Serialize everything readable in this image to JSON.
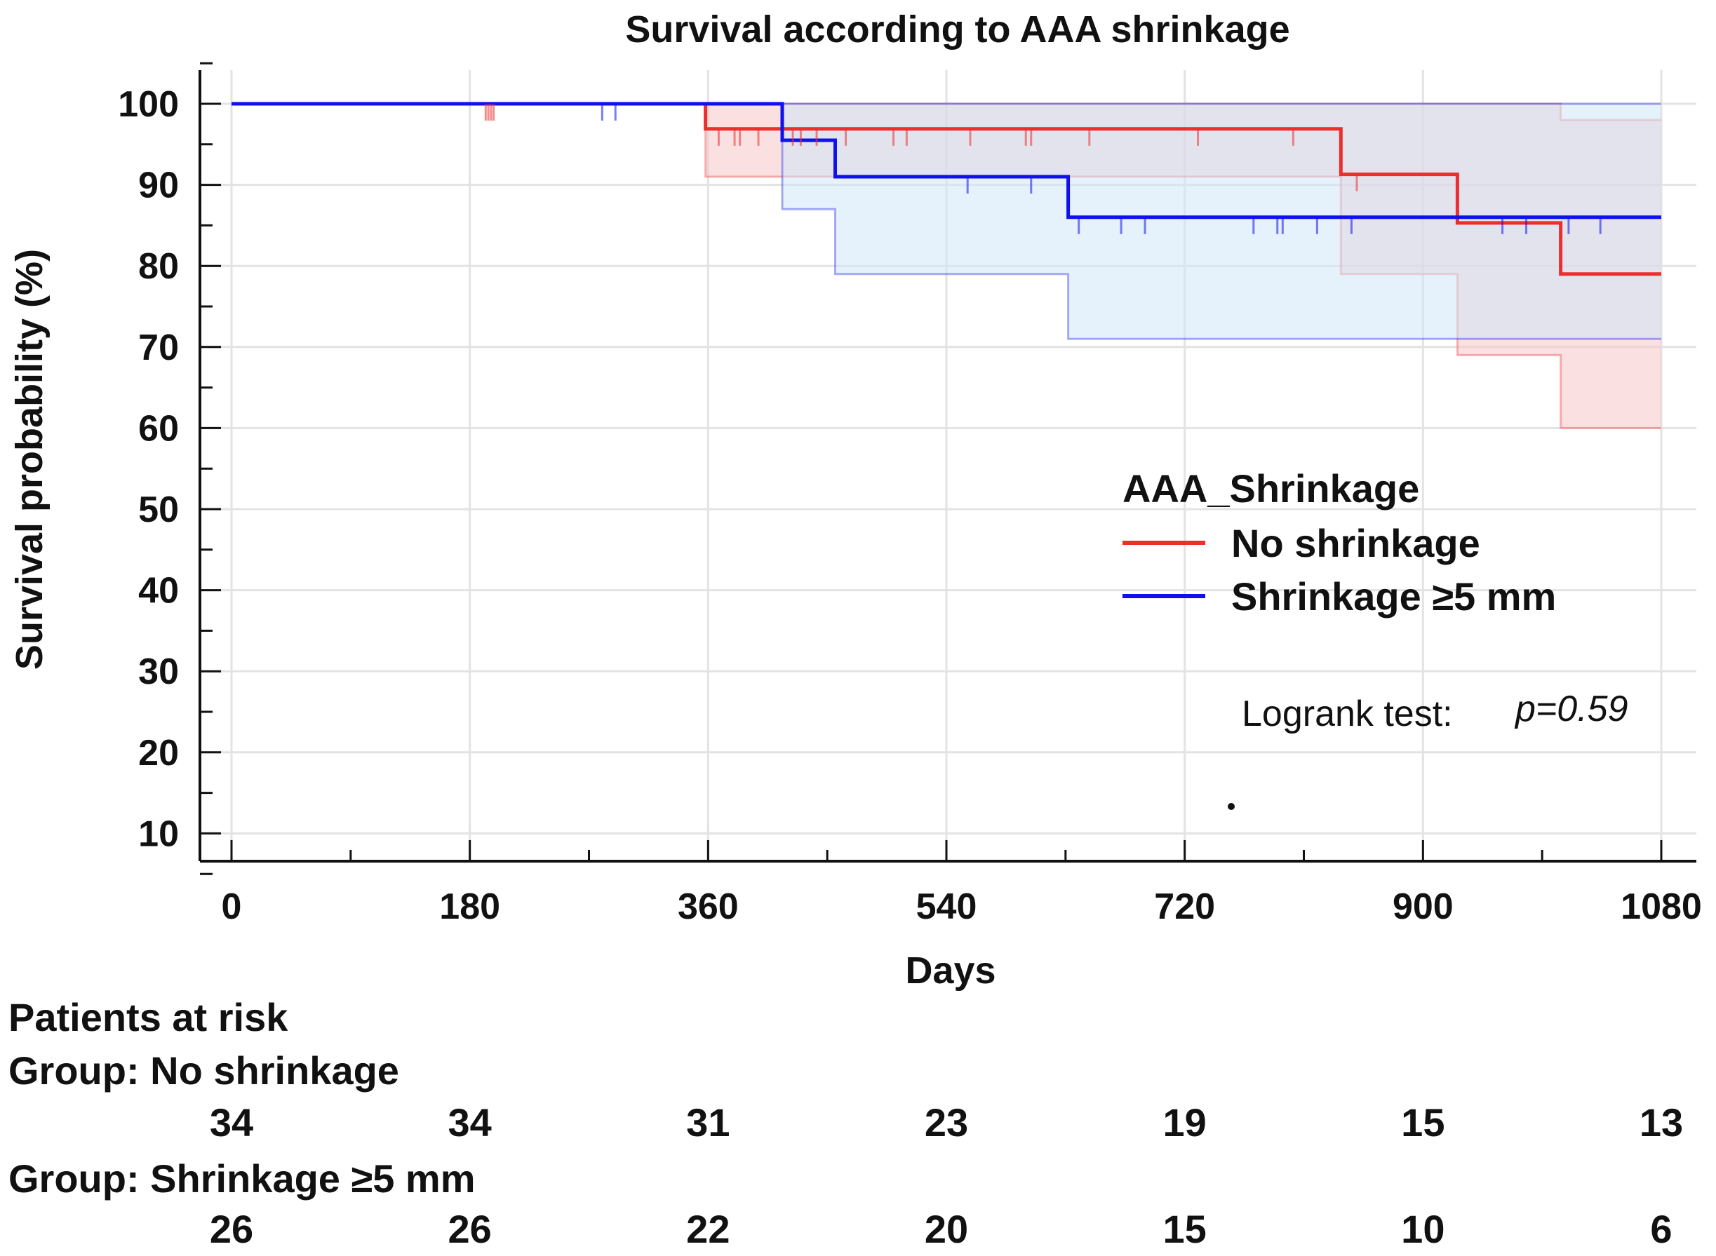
{
  "chart_data": {
    "type": "line",
    "subtype": "kaplan-meier step",
    "title": "Survival according to AAA shrinkage",
    "xlabel": "Days",
    "ylabel": "Survival probability (%)",
    "xlim": [
      0,
      1080
    ],
    "ylim": [
      5,
      105
    ],
    "xticks": [
      0,
      180,
      360,
      540,
      720,
      900,
      1080
    ],
    "yticks": [
      10,
      20,
      30,
      40,
      50,
      60,
      70,
      80,
      90,
      100
    ],
    "grid": true,
    "legend": {
      "title": "AAA_Shrinkage",
      "position": "center-right",
      "entries": [
        "No shrinkage",
        "Shrinkage ≥5 mm"
      ]
    },
    "annotation": {
      "text": "Logrank test:",
      "p_text": "p=0.59"
    },
    "series": [
      {
        "name": "No shrinkage",
        "color": "#ee2d2d",
        "band_color": "#f7c6cb",
        "x": [
          0,
          358,
          838,
          926,
          1004,
          1080
        ],
        "survival": [
          100,
          96.9,
          91.3,
          85.3,
          79,
          79
        ],
        "ci_upper_x": [
          0,
          1004,
          1080
        ],
        "ci_upper": [
          100,
          98,
          98
        ],
        "ci_lower_x": [
          0,
          358,
          838,
          926,
          1004,
          1080
        ],
        "ci_lower": [
          100,
          91,
          79,
          69,
          60,
          60
        ],
        "censored_x": [
          192,
          194,
          196,
          198,
          368,
          380,
          384,
          398,
          424,
          430,
          442,
          464,
          500,
          510,
          558,
          600,
          604,
          648,
          730,
          802,
          850
        ],
        "at_risk": [
          34,
          34,
          31,
          23,
          19,
          15,
          13
        ]
      },
      {
        "name": "Shrinkage ≥5 mm",
        "color": "#1010ee",
        "band_color": "#cfe6f8",
        "x": [
          0,
          416,
          456,
          632,
          1080
        ],
        "survival": [
          100,
          95.5,
          91,
          86,
          86
        ],
        "ci_upper_x": [
          0,
          1080
        ],
        "ci_upper": [
          100,
          100
        ],
        "ci_lower_x": [
          0,
          416,
          456,
          632,
          1080
        ],
        "ci_lower": [
          100,
          87,
          79,
          71,
          71
        ],
        "censored_x": [
          280,
          290,
          556,
          604,
          640,
          672,
          690,
          772,
          790,
          794,
          820,
          846,
          960,
          978,
          1010,
          1034
        ],
        "at_risk": [
          26,
          26,
          22,
          20,
          15,
          10,
          6
        ]
      }
    ],
    "patients_at_risk": {
      "heading": "Patients at risk",
      "groups": [
        "Group: No shrinkage",
        "Group: Shrinkage ≥5 mm"
      ]
    }
  }
}
